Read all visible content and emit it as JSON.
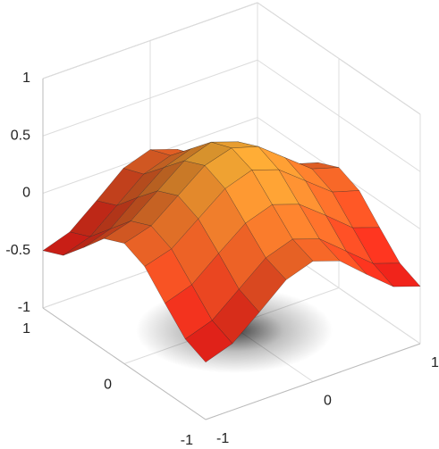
{
  "chart_data": {
    "type": "surface",
    "x": [
      -1,
      -0.75,
      -0.5,
      -0.25,
      0,
      0.25,
      0.5,
      0.75,
      1
    ],
    "y": [
      -1,
      -0.75,
      -0.5,
      -0.25,
      0,
      0.25,
      0.5,
      0.75,
      1
    ],
    "z": [
      [
        -0.5,
        -0.42,
        -0.23,
        -0.03,
        0.05,
        -0.03,
        -0.23,
        -0.42,
        -0.5
      ],
      [
        -0.42,
        -0.34,
        -0.15,
        0.04,
        0.12,
        0.04,
        -0.15,
        -0.34,
        -0.42
      ],
      [
        -0.23,
        -0.15,
        0.04,
        0.22,
        0.3,
        0.22,
        0.04,
        -0.15,
        -0.23
      ],
      [
        -0.03,
        0.04,
        0.22,
        0.4,
        0.48,
        0.4,
        0.22,
        0.04,
        -0.03
      ],
      [
        0.05,
        0.12,
        0.3,
        0.48,
        0.55,
        0.48,
        0.3,
        0.12,
        0.05
      ],
      [
        -0.03,
        0.04,
        0.22,
        0.4,
        0.48,
        0.4,
        0.22,
        0.04,
        -0.03
      ],
      [
        -0.23,
        -0.15,
        0.04,
        0.22,
        0.3,
        0.22,
        0.04,
        -0.15,
        -0.23
      ],
      [
        -0.42,
        -0.34,
        -0.15,
        0.04,
        0.12,
        0.04,
        -0.15,
        -0.34,
        -0.42
      ],
      [
        -0.5,
        -0.42,
        -0.23,
        -0.03,
        0.05,
        -0.03,
        -0.23,
        -0.42,
        -0.5
      ]
    ],
    "xlim": [
      -1,
      1
    ],
    "ylim": [
      -1,
      1
    ],
    "zlim": [
      -1,
      1
    ],
    "xticks": [
      -1,
      0,
      1
    ],
    "yticks": [
      -1,
      0,
      1
    ],
    "zticks": [
      -1,
      -0.5,
      0,
      0.5,
      1
    ],
    "grid": true,
    "colormap": [
      "#e8231a",
      "#ffe640"
    ]
  }
}
